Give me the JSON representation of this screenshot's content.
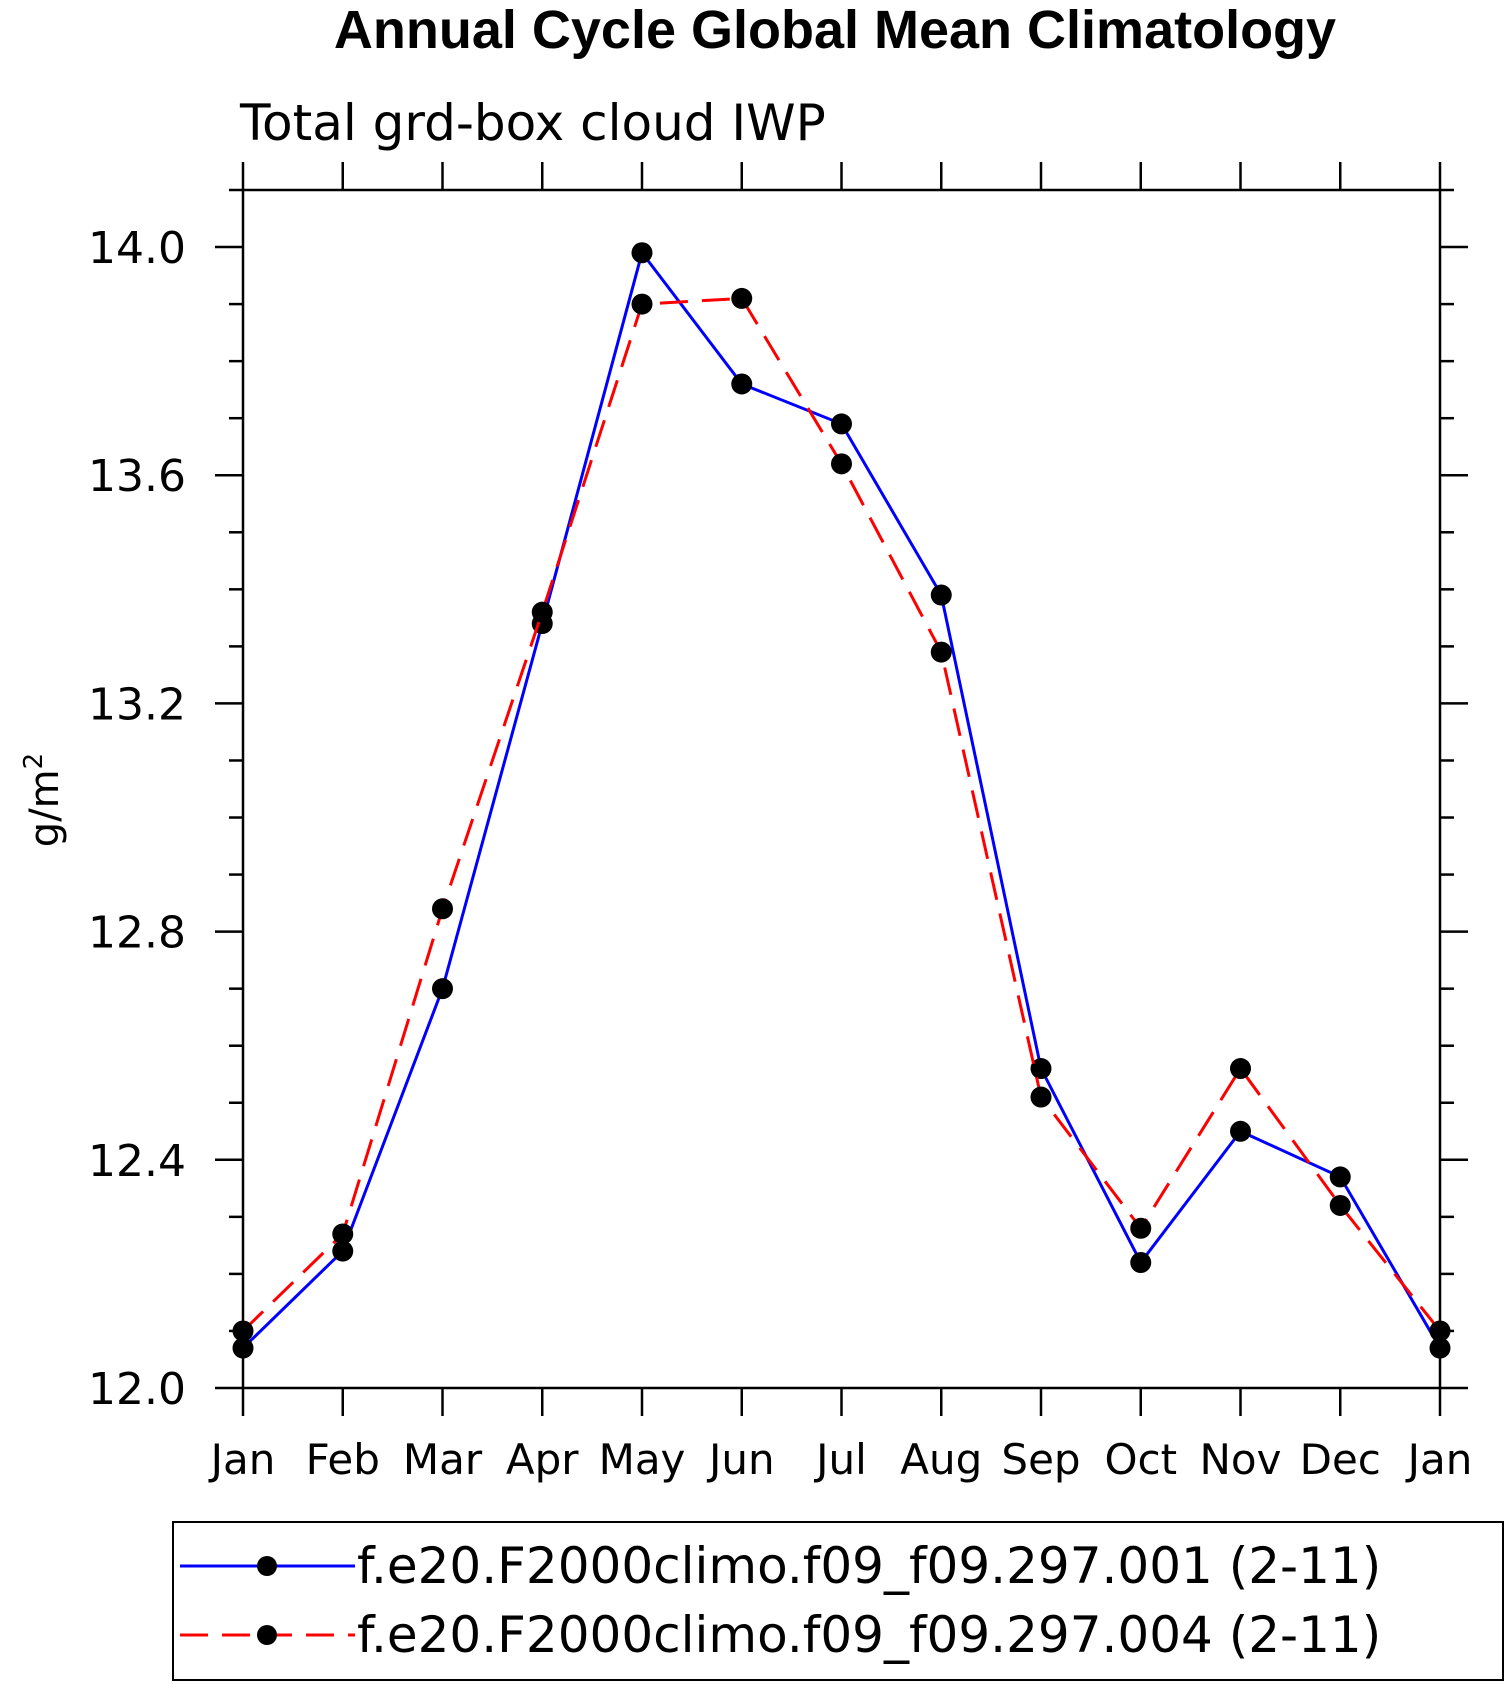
{
  "chart_data": {
    "type": "line",
    "title": "Annual Cycle Global Mean Climatology",
    "subtitle": "Total grd-box cloud IWP",
    "ylabel_base": "g/m",
    "ylabel_sup": "2",
    "categories": [
      "Jan",
      "Feb",
      "Mar",
      "Apr",
      "May",
      "Jun",
      "Jul",
      "Aug",
      "Sep",
      "Oct",
      "Nov",
      "Dec",
      "Jan"
    ],
    "ylim": [
      12.0,
      14.1
    ],
    "yticks": [
      "12.0",
      "12.4",
      "12.8",
      "13.2",
      "13.6",
      "14.0"
    ],
    "legend_position": "bottom",
    "series": [
      {
        "name": "f.e20.F2000climo.f09_f09.297.001 (2-11)",
        "color": "#0000ff",
        "dash": "solid",
        "marker": "filled-circle",
        "values": [
          12.07,
          12.24,
          12.7,
          13.34,
          13.99,
          13.76,
          13.69,
          13.39,
          12.56,
          12.22,
          12.45,
          12.37,
          12.07
        ]
      },
      {
        "name": "f.e20.F2000climo.f09_f09.297.004 (2-11)",
        "color": "#ff0000",
        "dash": "dashed",
        "marker": "filled-circle",
        "values": [
          12.1,
          12.27,
          12.84,
          13.36,
          13.9,
          13.91,
          13.62,
          13.29,
          12.51,
          12.28,
          12.56,
          12.32,
          12.1
        ]
      }
    ]
  }
}
